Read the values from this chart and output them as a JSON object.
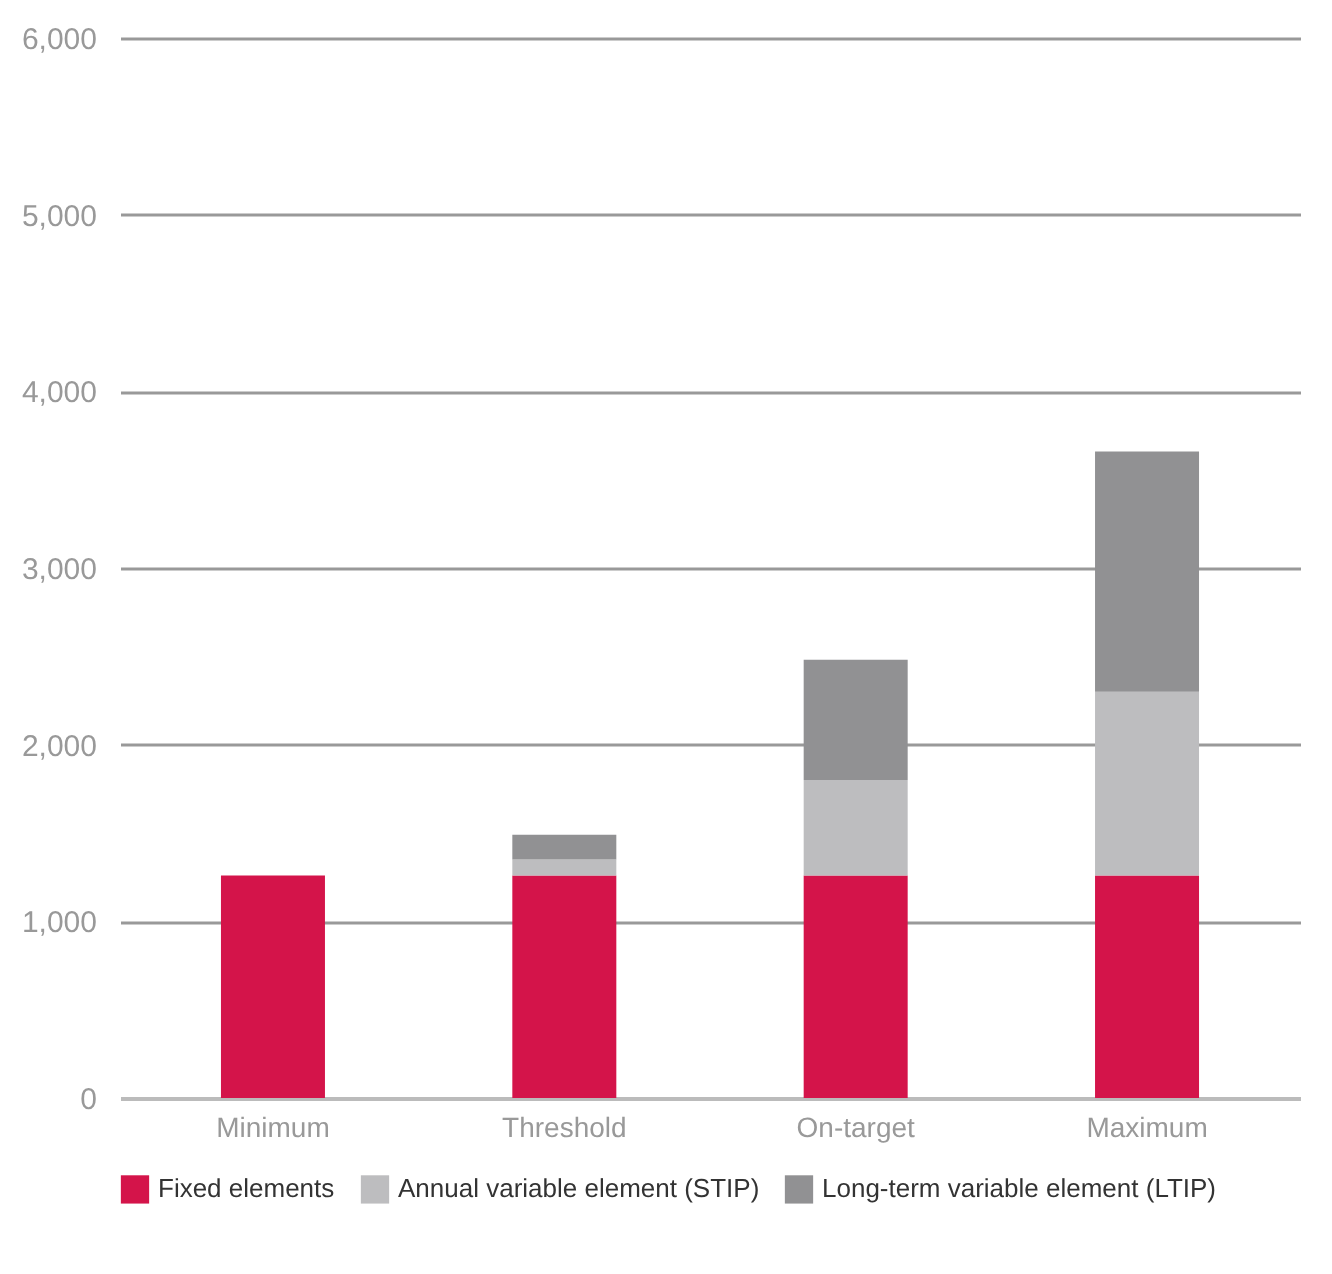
{
  "chart_data": {
    "type": "bar",
    "stacked": true,
    "categories": [
      "Minimum",
      "Threshold",
      "On-target",
      "Maximum"
    ],
    "series": [
      {
        "name": "Fixed elements",
        "color": "#d4144a",
        "values": [
          1260,
          1260,
          1260,
          1260
        ]
      },
      {
        "name": "Annual variable element (STIP)",
        "color": "#bdbdbf",
        "values": [
          0,
          90,
          540,
          1040
        ]
      },
      {
        "name": "Long-term variable element (LTIP)",
        "color": "#919193",
        "values": [
          0,
          140,
          680,
          1360
        ]
      }
    ],
    "ylim": [
      0,
      6000
    ],
    "yticks": [
      0,
      {
        "value": 1000,
        "label": "1,000"
      },
      {
        "value": 2000,
        "label": "2,000"
      },
      {
        "value": 3000,
        "label": "3,000"
      },
      {
        "value": 4000,
        "label": "4,000"
      },
      {
        "value": 5000,
        "label": "5,000"
      },
      {
        "value": 6000,
        "label": "6,000"
      }
    ],
    "grid": "y",
    "legend": "bottom"
  }
}
